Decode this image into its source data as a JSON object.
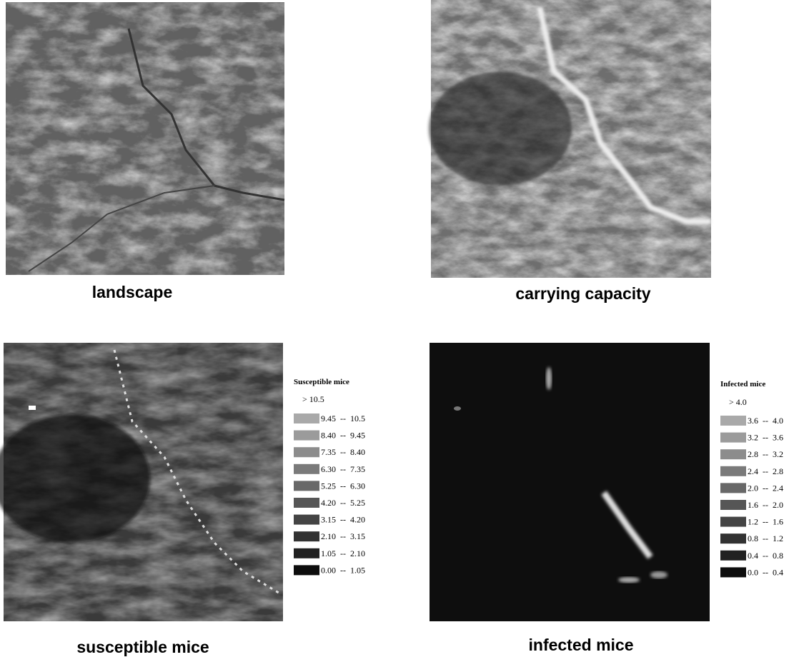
{
  "panels": [
    {
      "caption": "landscape"
    },
    {
      "caption": "carrying capacity"
    },
    {
      "caption": "susceptible mice",
      "legend": {
        "title": "Susceptible mice",
        "top_label": "> 10.5",
        "items": [
          {
            "label": "9.45  --  10.5",
            "color": "#a9a9a9"
          },
          {
            "label": "8.40  --  9.45",
            "color": "#9b9b9b"
          },
          {
            "label": "7.35  --  8.40",
            "color": "#8c8c8c"
          },
          {
            "label": "6.30  --  7.35",
            "color": "#7a7a7a"
          },
          {
            "label": "5.25  --  6.30",
            "color": "#686868"
          },
          {
            "label": "4.20  --  5.25",
            "color": "#565656"
          },
          {
            "label": "3.15  --  4.20",
            "color": "#444444"
          },
          {
            "label": "2.10  --  3.15",
            "color": "#323232"
          },
          {
            "label": "1.05  --  2.10",
            "color": "#212121"
          },
          {
            "label": "0.00  --  1.05",
            "color": "#0d0d0d"
          }
        ]
      }
    },
    {
      "caption": "infected mice",
      "legend": {
        "title": "Infected mice",
        "top_label": "> 4.0",
        "items": [
          {
            "label": "3.6  --  4.0",
            "color": "#a9a9a9"
          },
          {
            "label": "3.2  --  3.6",
            "color": "#9b9b9b"
          },
          {
            "label": "2.8  --  3.2",
            "color": "#8c8c8c"
          },
          {
            "label": "2.4  --  2.8",
            "color": "#7a7a7a"
          },
          {
            "label": "2.0  --  2.4",
            "color": "#686868"
          },
          {
            "label": "1.6  --  2.0",
            "color": "#565656"
          },
          {
            "label": "1.2  --  1.6",
            "color": "#444444"
          },
          {
            "label": "0.8  --  1.2",
            "color": "#323232"
          },
          {
            "label": "0.4  --  0.8",
            "color": "#212121"
          },
          {
            "label": "0.0  --  0.4",
            "color": "#0d0d0d"
          }
        ]
      }
    }
  ]
}
